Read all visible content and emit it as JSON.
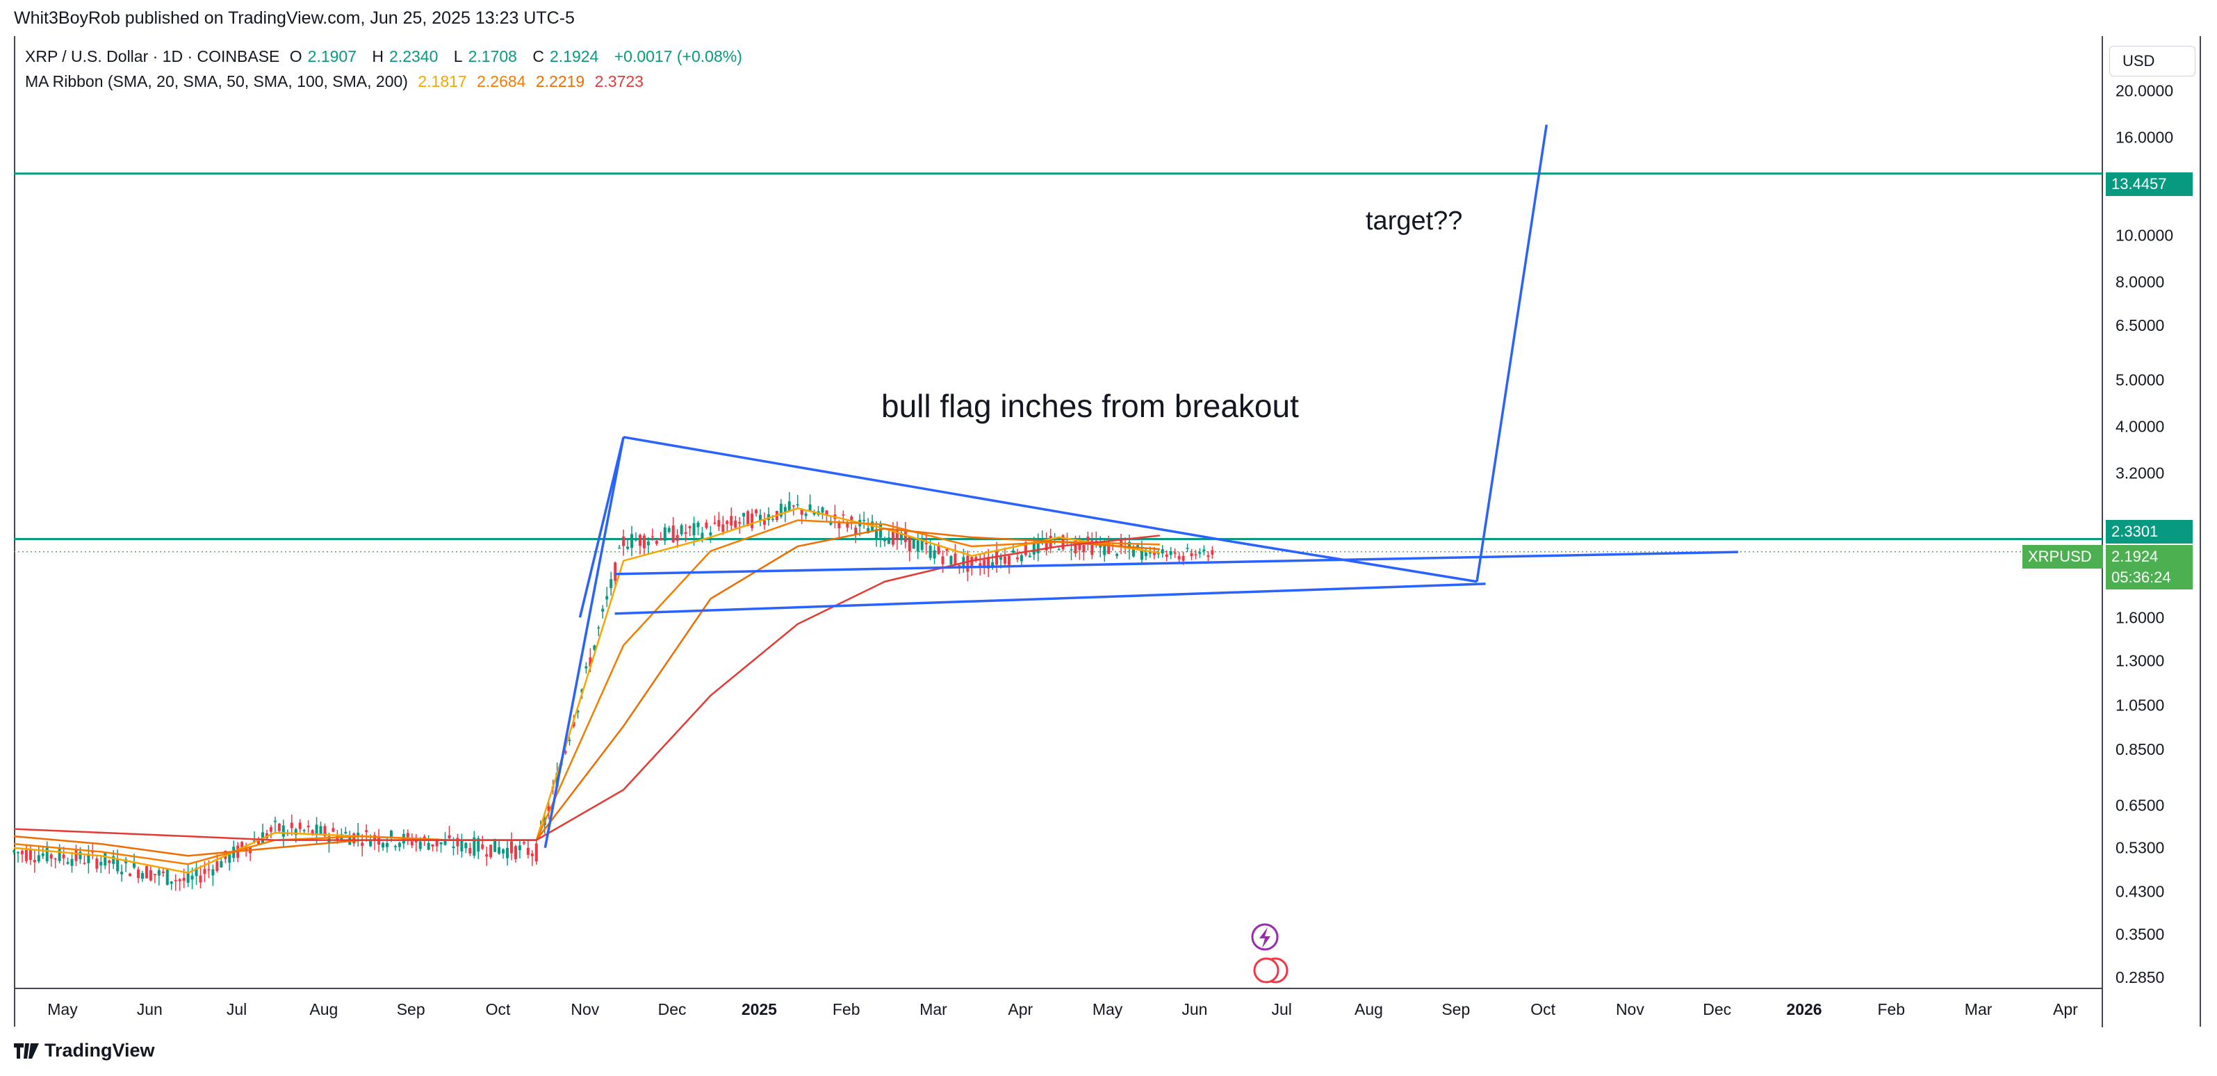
{
  "header": {
    "published": "Whit3BoyRob published on TradingView.com, Jun 25, 2025 13:23 UTC-5"
  },
  "legend": {
    "symbol": "XRP / U.S. Dollar · 1D · COINBASE",
    "o_label": "O",
    "o_value": "2.1907",
    "h_label": "H",
    "h_value": "2.2340",
    "l_label": "L",
    "l_value": "2.1708",
    "c_label": "C",
    "c_value": "2.1924",
    "change": "+0.0017 (+0.08%)",
    "ma_title": "MA Ribbon (SMA, 20, SMA, 50, SMA, 100, SMA, 200)",
    "ma_values": [
      "2.1817",
      "2.2684",
      "2.2219",
      "2.3723"
    ]
  },
  "price_scale": {
    "currency": "USD",
    "ticks": [
      "20.0000",
      "16.0000",
      "10.0000",
      "8.0000",
      "6.5000",
      "5.0000",
      "4.0000",
      "3.2000",
      "1.6000",
      "1.3000",
      "1.0500",
      "0.8500",
      "0.6500",
      "0.5300",
      "0.4300",
      "0.3500",
      "0.2850"
    ],
    "tick_values": [
      20,
      16,
      10,
      8,
      6.5,
      5,
      4,
      3.2,
      1.6,
      1.3,
      1.05,
      0.85,
      0.65,
      0.53,
      0.43,
      0.35,
      0.285
    ],
    "level_high_label": "13.4457",
    "level_mid_label": "2.3301",
    "symbol_tag": "XRPUSD",
    "price_label": "2.1924",
    "countdown": "05:36:24"
  },
  "time_axis": {
    "labels": [
      "May",
      "Jun",
      "Jul",
      "Aug",
      "Sep",
      "Oct",
      "Nov",
      "Dec",
      "2025",
      "Feb",
      "Mar",
      "Apr",
      "May",
      "Jun",
      "Jul",
      "Aug",
      "Sep",
      "Oct",
      "Nov",
      "Dec",
      "2026",
      "Feb",
      "Mar",
      "Apr"
    ],
    "bold": [
      "2025",
      "2026"
    ]
  },
  "annotations": {
    "bull_flag": "bull flag inches from breakout",
    "target": "target??"
  },
  "footer": {
    "brand": "TradingView"
  },
  "colors": {
    "level_line": "#089981",
    "drawing": "#2962ff",
    "up": "#089981",
    "down": "#f23645",
    "last_price": "#4caf50",
    "ma20": "#f7a600",
    "ma50": "#f57c00",
    "ma100": "#ef6c00",
    "ma200": "#e53935"
  },
  "chart_data": {
    "type": "line",
    "title": "XRP / U.S. Dollar · 1D · COINBASE",
    "y_scale": "log",
    "ylim": [
      0.27,
      26
    ],
    "x": [
      "2024-05",
      "2024-06",
      "2024-07",
      "2024-08",
      "2024-09",
      "2024-10",
      "2024-11",
      "2024-12",
      "2025-01",
      "2025-02",
      "2025-03",
      "2025-04",
      "2025-05",
      "2025-06"
    ],
    "series": [
      {
        "values": [
          0.52,
          0.5,
          0.45,
          0.58,
          0.56,
          0.54,
          0.52,
          2.3,
          2.45,
          2.7,
          2.4,
          2.05,
          2.3,
          2.19
        ]
      },
      {
        "name": "SMA 20",
        "values": [
          0.53,
          0.51,
          0.47,
          0.57,
          0.56,
          0.55,
          0.55,
          2.1,
          2.35,
          2.7,
          2.45,
          2.15,
          2.35,
          2.18
        ]
      },
      {
        "name": "SMA 50",
        "values": [
          0.54,
          0.52,
          0.49,
          0.55,
          0.56,
          0.55,
          0.55,
          1.4,
          2.2,
          2.55,
          2.5,
          2.25,
          2.3,
          2.27
        ]
      },
      {
        "name": "SMA 100",
        "values": [
          0.56,
          0.54,
          0.51,
          0.53,
          0.55,
          0.55,
          0.55,
          0.95,
          1.75,
          2.25,
          2.45,
          2.35,
          2.3,
          2.22
        ]
      },
      {
        "name": "SMA 200",
        "values": [
          0.58,
          0.57,
          0.56,
          0.55,
          0.55,
          0.55,
          0.55,
          0.7,
          1.1,
          1.55,
          1.9,
          2.1,
          2.25,
          2.37
        ]
      }
    ],
    "horizontal_levels": [
      13.4457,
      2.3301
    ]
  }
}
